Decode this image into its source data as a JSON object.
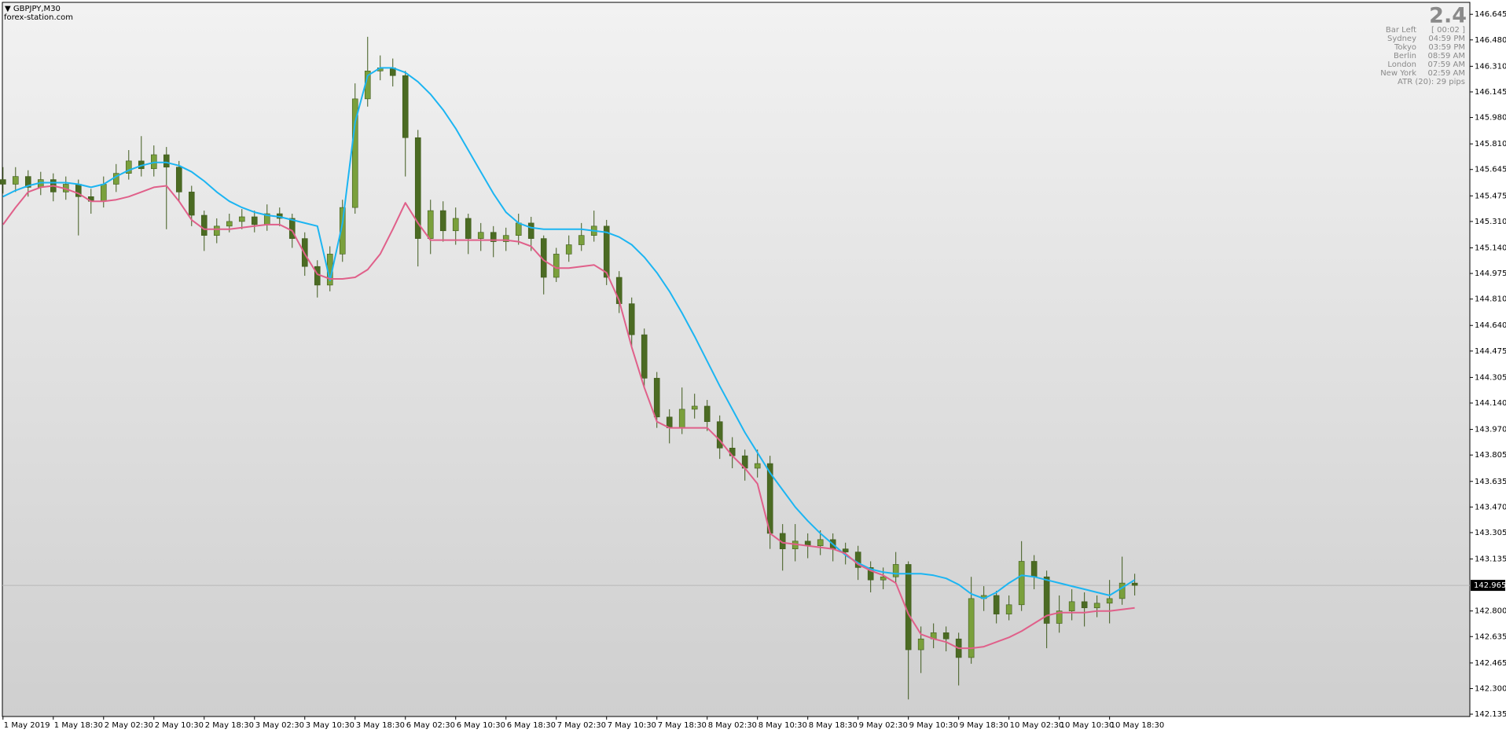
{
  "chart_data": {
    "type": "candlestick",
    "symbol": "GBPJPY,M30",
    "source": "forex-station.com",
    "spread": 2.4,
    "info_rows": [
      {
        "label": "Bar Left",
        "value": "[ 00:02 ]"
      },
      {
        "label": "Sydney",
        "value": "04:59 PM"
      },
      {
        "label": "Tokyo",
        "value": "03:59 PM"
      },
      {
        "label": "Berlin",
        "value": "08:59 AM"
      },
      {
        "label": "London",
        "value": "07:59 AM"
      },
      {
        "label": "New York",
        "value": "02:59 AM"
      }
    ],
    "atr_text": "ATR (20): 29 pips",
    "current_price": {
      "value": 142.965,
      "label": "142.965"
    },
    "up_color": "#7aa03c",
    "down_color": "#4b6b23",
    "wick_color": "#3f5a1c",
    "open": [
      145.58,
      145.55,
      145.6,
      145.53,
      145.58,
      145.5,
      145.55,
      145.47,
      145.44,
      145.55,
      145.62,
      145.7,
      145.65,
      145.74,
      145.66,
      145.5,
      145.35,
      145.22,
      145.28,
      145.31,
      145.34,
      145.29,
      145.36,
      145.33,
      145.2,
      145.02,
      144.9,
      145.1,
      145.4,
      146.1,
      146.28,
      146.3,
      146.25,
      145.85,
      145.2,
      145.38,
      145.25,
      145.33,
      145.2,
      145.24,
      145.18,
      145.22,
      145.3,
      145.2,
      144.95,
      145.1,
      145.16,
      145.22,
      145.28,
      144.95,
      144.78,
      144.58,
      144.3,
      144.05,
      143.98,
      144.1,
      144.12,
      144.02,
      143.85,
      143.8,
      143.72,
      143.75,
      143.3,
      143.2,
      143.25,
      143.22,
      143.26,
      143.2,
      143.18,
      143.08,
      143.0,
      143.02,
      143.1,
      142.55,
      142.62,
      142.66,
      142.62,
      142.5,
      142.88,
      142.9,
      142.78,
      142.84,
      143.12,
      143.02,
      142.72,
      142.8,
      142.86,
      142.82,
      142.85,
      142.88,
      142.98
    ],
    "high": [
      145.66,
      145.66,
      145.64,
      145.63,
      145.62,
      145.6,
      145.58,
      145.52,
      145.6,
      145.68,
      145.77,
      145.86,
      145.8,
      145.79,
      145.7,
      145.54,
      145.38,
      145.33,
      145.36,
      145.39,
      145.38,
      145.42,
      145.4,
      145.36,
      145.24,
      145.06,
      145.15,
      145.45,
      146.2,
      146.5,
      146.38,
      146.36,
      146.28,
      145.9,
      145.45,
      145.44,
      145.4,
      145.36,
      145.3,
      145.28,
      145.27,
      145.36,
      145.34,
      145.22,
      145.14,
      145.22,
      145.3,
      145.38,
      145.32,
      144.99,
      144.82,
      144.62,
      144.34,
      144.1,
      144.24,
      144.2,
      144.16,
      144.06,
      143.92,
      143.84,
      143.84,
      143.8,
      143.36,
      143.36,
      143.3,
      143.32,
      143.3,
      143.24,
      143.22,
      143.12,
      143.08,
      143.18,
      143.12,
      142.7,
      142.72,
      142.7,
      142.66,
      143.02,
      142.96,
      142.93,
      142.9,
      143.25,
      143.16,
      143.06,
      142.9,
      142.94,
      142.92,
      142.9,
      143.0,
      143.15,
      143.04
    ],
    "low": [
      145.49,
      145.5,
      145.47,
      145.48,
      145.44,
      145.45,
      145.22,
      145.36,
      145.4,
      145.5,
      145.58,
      145.6,
      145.6,
      145.26,
      145.44,
      145.28,
      145.12,
      145.17,
      145.24,
      145.26,
      145.24,
      145.25,
      145.28,
      145.14,
      144.96,
      144.82,
      144.86,
      145.05,
      145.36,
      146.05,
      146.22,
      146.18,
      145.6,
      145.02,
      145.1,
      145.18,
      145.16,
      145.1,
      145.12,
      145.08,
      145.12,
      145.16,
      145.12,
      144.84,
      144.92,
      145.05,
      145.12,
      145.18,
      144.9,
      144.72,
      144.5,
      144.24,
      143.98,
      143.88,
      143.94,
      144.04,
      143.96,
      143.78,
      143.72,
      143.64,
      143.66,
      143.2,
      143.06,
      143.12,
      143.14,
      143.16,
      143.12,
      143.1,
      143.0,
      142.92,
      142.94,
      142.98,
      142.23,
      142.4,
      142.56,
      142.54,
      142.32,
      142.46,
      142.8,
      142.72,
      142.74,
      142.8,
      142.94,
      142.56,
      142.66,
      142.74,
      142.7,
      142.76,
      142.72,
      142.84,
      142.9
    ],
    "close": [
      145.55,
      145.6,
      145.53,
      145.58,
      145.5,
      145.55,
      145.47,
      145.44,
      145.55,
      145.62,
      145.7,
      145.65,
      145.74,
      145.66,
      145.5,
      145.35,
      145.22,
      145.28,
      145.31,
      145.34,
      145.29,
      145.36,
      145.33,
      145.2,
      145.02,
      144.9,
      145.1,
      145.4,
      146.1,
      146.28,
      146.3,
      146.25,
      145.85,
      145.2,
      145.38,
      145.25,
      145.33,
      145.2,
      145.24,
      145.18,
      145.22,
      145.3,
      145.2,
      144.95,
      145.1,
      145.16,
      145.22,
      145.28,
      144.95,
      144.78,
      144.58,
      144.3,
      144.05,
      143.98,
      144.1,
      144.12,
      144.02,
      143.85,
      143.8,
      143.72,
      143.75,
      143.3,
      143.2,
      143.25,
      143.22,
      143.26,
      143.2,
      143.18,
      143.08,
      143.0,
      143.02,
      143.1,
      142.55,
      142.62,
      142.66,
      142.62,
      142.5,
      142.88,
      142.9,
      142.78,
      142.84,
      143.12,
      143.02,
      142.72,
      142.8,
      142.86,
      142.82,
      142.85,
      142.88,
      142.98,
      142.965
    ],
    "lines": [
      {
        "color": "#1cb5f2",
        "values": [
          145.47,
          145.51,
          145.54,
          145.56,
          145.56,
          145.56,
          145.55,
          145.53,
          145.55,
          145.6,
          145.64,
          145.67,
          145.69,
          145.69,
          145.67,
          145.63,
          145.57,
          145.5,
          145.44,
          145.4,
          145.37,
          145.35,
          145.34,
          145.32,
          145.3,
          145.28,
          144.93,
          145.3,
          145.95,
          146.25,
          146.3,
          146.3,
          146.27,
          146.21,
          146.13,
          146.03,
          145.91,
          145.77,
          145.63,
          145.49,
          145.37,
          145.3,
          145.27,
          145.26,
          145.26,
          145.26,
          145.26,
          145.25,
          145.24,
          145.21,
          145.16,
          145.08,
          144.98,
          144.86,
          144.72,
          144.57,
          144.41,
          144.25,
          144.1,
          143.95,
          143.82,
          143.69,
          143.58,
          143.47,
          143.38,
          143.3,
          143.23,
          143.16,
          143.11,
          143.07,
          143.05,
          143.04,
          143.04,
          143.04,
          143.03,
          143.01,
          142.97,
          142.91,
          142.88,
          142.92,
          142.98,
          143.03,
          143.02,
          143.0,
          142.98,
          142.96,
          142.94,
          142.92,
          142.9,
          142.95,
          143.0
        ]
      },
      {
        "color": "#e0608a",
        "values": [
          145.29,
          145.4,
          145.5,
          145.53,
          145.54,
          145.52,
          145.49,
          145.44,
          145.44,
          145.45,
          145.47,
          145.5,
          145.53,
          145.54,
          145.44,
          145.32,
          145.26,
          145.26,
          145.26,
          145.27,
          145.28,
          145.29,
          145.29,
          145.25,
          145.1,
          144.97,
          144.94,
          144.94,
          144.95,
          145.0,
          145.1,
          145.26,
          145.43,
          145.3,
          145.19,
          145.19,
          145.19,
          145.19,
          145.19,
          145.19,
          145.19,
          145.18,
          145.15,
          145.06,
          145.01,
          145.01,
          145.02,
          145.03,
          144.98,
          144.8,
          144.5,
          144.24,
          144.02,
          143.98,
          143.98,
          143.98,
          143.98,
          143.9,
          143.8,
          143.72,
          143.62,
          143.3,
          143.24,
          143.23,
          143.22,
          143.21,
          143.2,
          143.17,
          143.1,
          143.06,
          143.03,
          142.98,
          142.78,
          142.65,
          142.62,
          142.6,
          142.56,
          142.56,
          142.57,
          142.6,
          142.63,
          142.67,
          142.72,
          142.77,
          142.79,
          142.79,
          142.79,
          142.8,
          142.8,
          142.81,
          142.82
        ]
      }
    ],
    "xlim": [
      -0.05,
      116.65
    ],
    "xticks": [
      {
        "value": 0,
        "label": "1 May 2019"
      },
      {
        "value": 4,
        "label": "1 May 18:30"
      },
      {
        "value": 8,
        "label": "2 May 02:30"
      },
      {
        "value": 12,
        "label": "2 May 10:30"
      },
      {
        "value": 16,
        "label": "2 May 18:30"
      },
      {
        "value": 20,
        "label": "3 May 02:30"
      },
      {
        "value": 24,
        "label": "3 May 10:30"
      },
      {
        "value": 28,
        "label": "3 May 18:30"
      },
      {
        "value": 32,
        "label": "6 May 02:30"
      },
      {
        "value": 36,
        "label": "6 May 10:30"
      },
      {
        "value": 40,
        "label": "6 May 18:30"
      },
      {
        "value": 44,
        "label": "7 May 02:30"
      },
      {
        "value": 48,
        "label": "7 May 10:30"
      },
      {
        "value": 52,
        "label": "7 May 18:30"
      },
      {
        "value": 56,
        "label": "8 May 02:30"
      },
      {
        "value": 60,
        "label": "8 May 10:30"
      },
      {
        "value": 64,
        "label": "8 May 18:30"
      },
      {
        "value": 68,
        "label": "9 May 02:30"
      },
      {
        "value": 72,
        "label": "9 May 10:30"
      },
      {
        "value": 76,
        "label": "9 May 18:30"
      },
      {
        "value": 80,
        "label": "10 May 02:30"
      },
      {
        "value": 84,
        "label": "10 May 10:30"
      },
      {
        "value": 88,
        "label": "10 May 18:30"
      }
    ],
    "ylim": [
      142.12,
      146.722
    ],
    "yticks": [
      146.645,
      {
        "value": 146.48,
        "label": "146.480"
      },
      {
        "value": 146.31,
        "label": "146.310"
      },
      146.145,
      {
        "value": 145.98,
        "label": "145.980"
      },
      {
        "value": 145.81,
        "label": "145.810"
      },
      145.645,
      145.475,
      {
        "value": 145.31,
        "label": "145.310"
      },
      {
        "value": 145.14,
        "label": "145.140"
      },
      144.975,
      {
        "value": 144.81,
        "label": "144.810"
      },
      {
        "value": 144.64,
        "label": "144.640"
      },
      144.475,
      144.305,
      {
        "value": 144.14,
        "label": "144.140"
      },
      {
        "value": 143.97,
        "label": "143.970"
      },
      143.805,
      143.635,
      {
        "value": 143.47,
        "label": "143.470"
      },
      143.305,
      143.135,
      {
        "value": 142.8,
        "label": "142.800"
      },
      142.635,
      142.465,
      {
        "value": 142.3,
        "label": "142.300"
      },
      142.135
    ]
  }
}
